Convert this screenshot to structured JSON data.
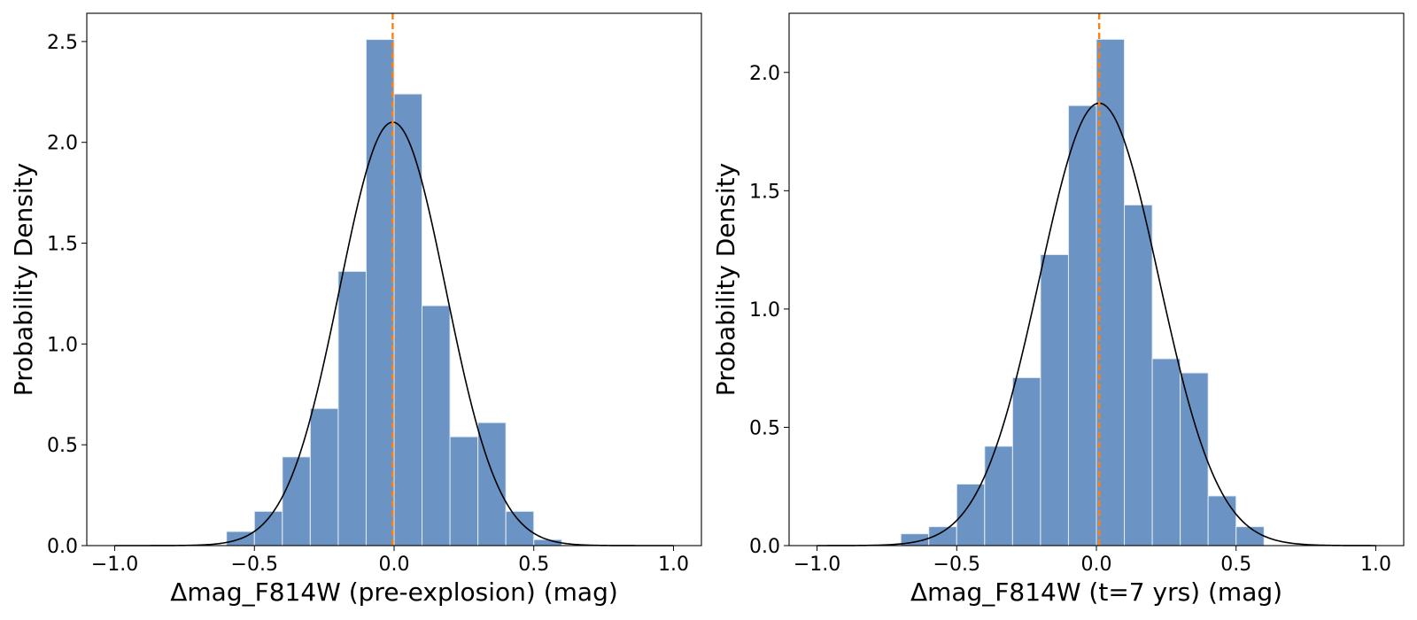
{
  "colors": {
    "bar_fill": "#6b93c3",
    "bar_edge": "#e6edf5",
    "fit_line": "#000000",
    "marker_line": "#ff7f0e"
  },
  "chart_data": [
    {
      "type": "bar",
      "title": "",
      "xlabel": "Δmag_F814W (pre-explosion) (mag)",
      "ylabel": "Probability Density",
      "xlim": [
        -1.1,
        1.1
      ],
      "ylim": [
        0,
        2.64
      ],
      "xticks": [
        "−1.0",
        "−0.5",
        "0.0",
        "0.5",
        "1.0"
      ],
      "xtick_values": [
        -1.0,
        -0.5,
        0.0,
        0.5,
        1.0
      ],
      "yticks": [
        "0.0",
        "0.5",
        "1.0",
        "1.5",
        "2.0",
        "2.5"
      ],
      "ytick_values": [
        0.0,
        0.5,
        1.0,
        1.5,
        2.0,
        2.5
      ],
      "grid": false,
      "histogram": {
        "bin_edges": [
          -0.6,
          -0.5,
          -0.4,
          -0.3,
          -0.2,
          -0.1,
          0.0,
          0.1,
          0.2,
          0.3,
          0.4,
          0.5,
          0.6
        ],
        "density": [
          0.07,
          0.17,
          0.44,
          0.68,
          1.36,
          2.51,
          2.24,
          1.19,
          0.54,
          0.61,
          0.17,
          0.03
        ]
      },
      "gaussian_fit": {
        "mean": -0.005,
        "sigma": 0.19,
        "peak": 2.1,
        "x_range": [
          -1.0,
          1.0
        ]
      },
      "vertical_line": {
        "x": -0.005,
        "style": "dashed"
      }
    },
    {
      "type": "bar",
      "title": "",
      "xlabel": "Δmag_F814W (t=7 yrs) (mag)",
      "ylabel": "Probability Density",
      "xlim": [
        -1.1,
        1.1
      ],
      "ylim": [
        0,
        2.25
      ],
      "xticks": [
        "−1.0",
        "−0.5",
        "0.0",
        "0.5",
        "1.0"
      ],
      "xtick_values": [
        -1.0,
        -0.5,
        0.0,
        0.5,
        1.0
      ],
      "yticks": [
        "0.0",
        "0.5",
        "1.0",
        "1.5",
        "2.0"
      ],
      "ytick_values": [
        0.0,
        0.5,
        1.0,
        1.5,
        2.0
      ],
      "grid": false,
      "histogram": {
        "bin_edges": [
          -0.7,
          -0.6,
          -0.5,
          -0.4,
          -0.3,
          -0.2,
          -0.1,
          0.0,
          0.1,
          0.2,
          0.3,
          0.4,
          0.5,
          0.6
        ],
        "density": [
          0.05,
          0.08,
          0.26,
          0.42,
          0.71,
          1.23,
          1.86,
          2.14,
          1.44,
          0.79,
          0.73,
          0.21,
          0.08
        ]
      },
      "gaussian_fit": {
        "mean": 0.01,
        "sigma": 0.213,
        "peak": 1.87,
        "x_range": [
          -1.0,
          1.0
        ]
      },
      "vertical_line": {
        "x": 0.01,
        "style": "dashed"
      }
    }
  ]
}
